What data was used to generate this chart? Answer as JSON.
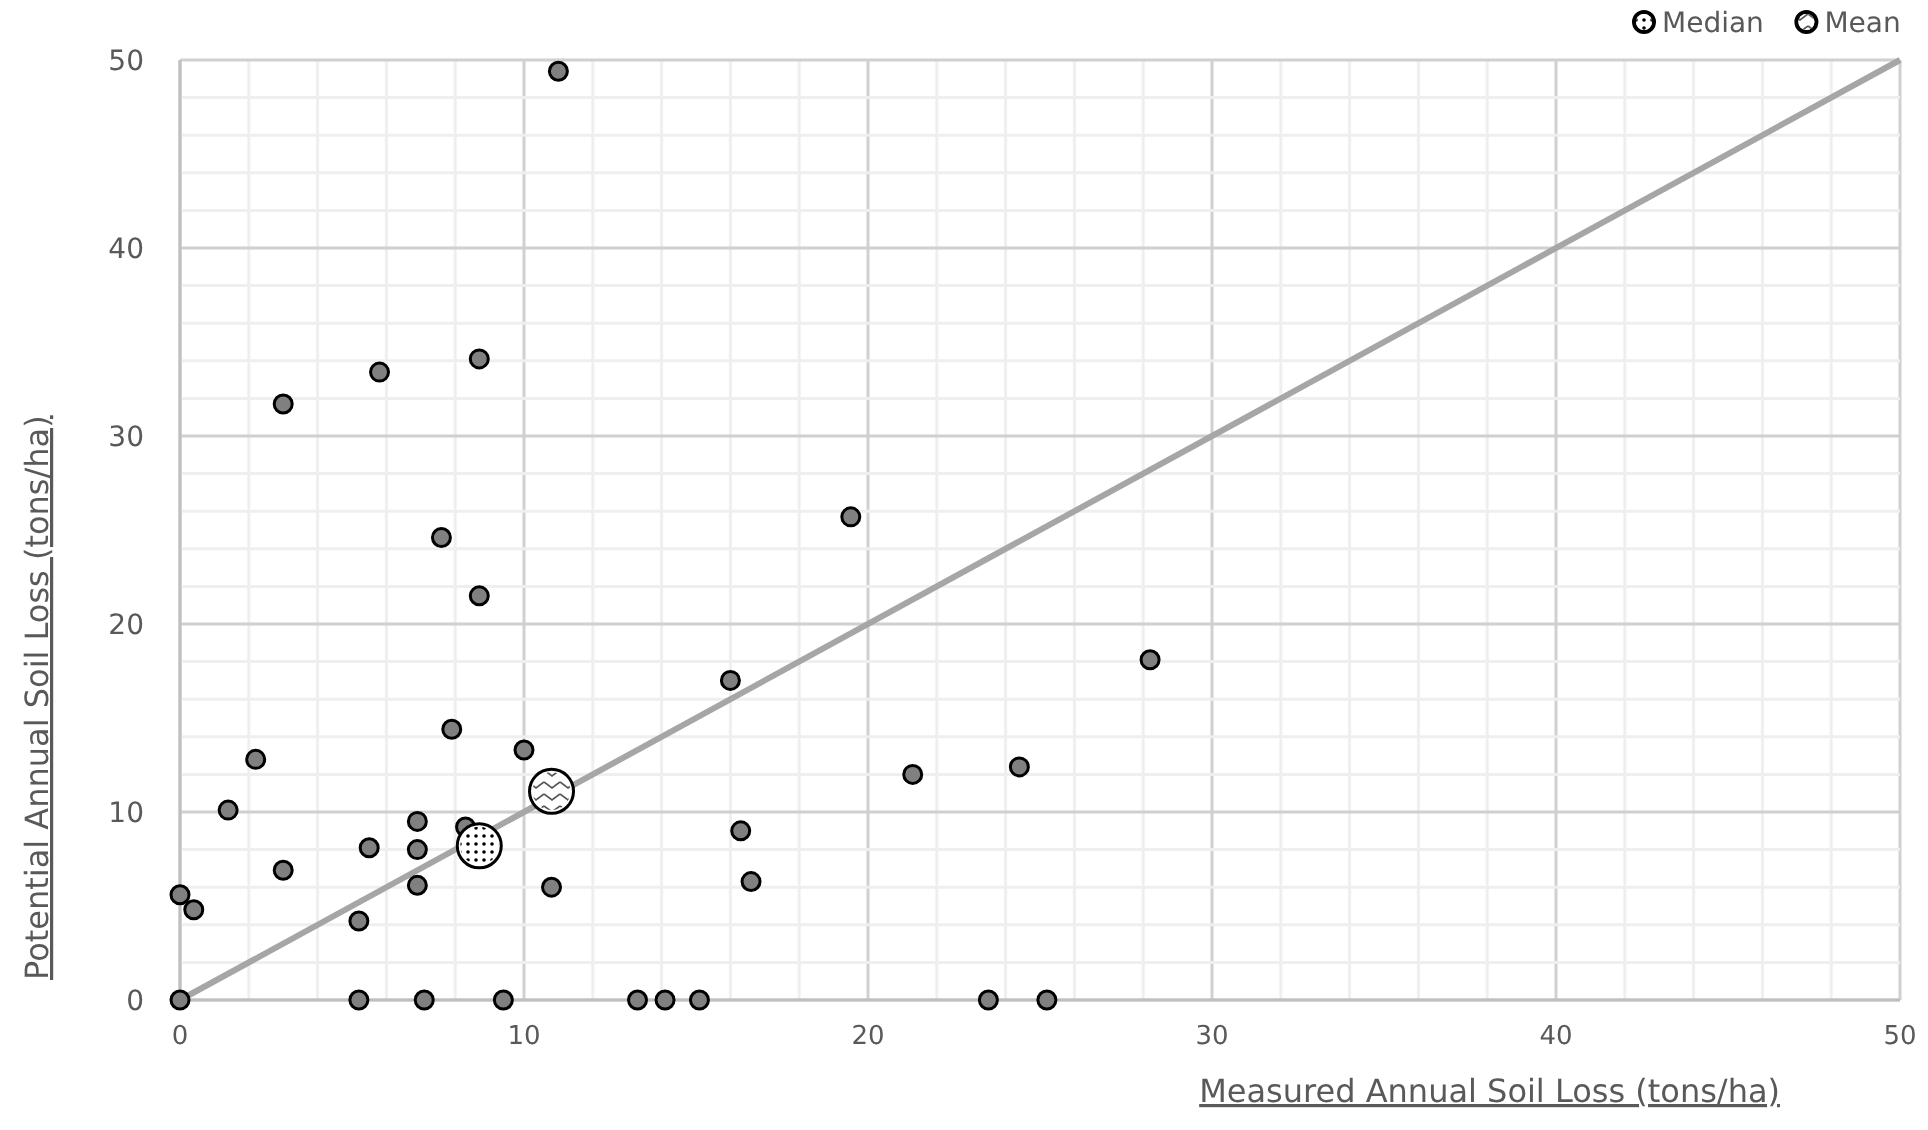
{
  "chart_data": {
    "type": "scatter",
    "xlabel": "Measured Annual Soil Loss (tons/ha)",
    "ylabel": "Potential Annual Soil Loss (tons/ha)",
    "xlim": [
      0,
      50
    ],
    "ylim": [
      0,
      50
    ],
    "xticks": [
      0,
      {
        "value": 2,
        "label": null
      },
      {
        "value": 4,
        "label": null
      },
      {
        "value": 6,
        "label": null
      },
      {
        "value": 8,
        "label": null
      },
      10,
      {
        "value": 12,
        "label": null
      },
      {
        "value": 14,
        "label": null
      },
      {
        "value": 16,
        "label": null
      },
      {
        "value": 18,
        "label": null
      },
      20,
      {
        "value": 22,
        "label": null
      },
      {
        "value": 24,
        "label": null
      },
      {
        "value": 26,
        "label": null
      },
      {
        "value": 28,
        "label": null
      },
      30,
      {
        "value": 32,
        "label": null
      },
      {
        "value": 34,
        "label": null
      },
      {
        "value": 36,
        "label": null
      },
      {
        "value": 38,
        "label": null
      },
      40,
      {
        "value": 42,
        "label": null
      },
      {
        "value": 44,
        "label": null
      },
      {
        "value": 46,
        "label": null
      },
      {
        "value": 48,
        "label": null
      },
      50
    ],
    "yticks": [
      0,
      {
        "value": 2,
        "label": null
      },
      {
        "value": 4,
        "label": null
      },
      {
        "value": 6,
        "label": null
      },
      {
        "value": 8,
        "label": null
      },
      10,
      {
        "value": 12,
        "label": null
      },
      {
        "value": 14,
        "label": null
      },
      {
        "value": 16,
        "label": null
      },
      {
        "value": 18,
        "label": null
      },
      20,
      {
        "value": 22,
        "label": null
      },
      {
        "value": 24,
        "label": null
      },
      {
        "value": 26,
        "label": null
      },
      {
        "value": 28,
        "label": null
      },
      30,
      {
        "value": 32,
        "label": null
      },
      {
        "value": 34,
        "label": null
      },
      {
        "value": 36,
        "label": null
      },
      {
        "value": 38,
        "label": null
      },
      40,
      {
        "value": 42,
        "label": null
      },
      {
        "value": 44,
        "label": null
      },
      {
        "value": 46,
        "label": null
      },
      {
        "value": 48,
        "label": null
      },
      50
    ],
    "grid": true,
    "legend": "top right",
    "marker": "circle",
    "series": [
      {
        "type": "line",
        "marker": "none",
        "color": "#a6a6a6",
        "x": [
          0,
          50
        ],
        "values": [
          0,
          50
        ]
      },
      {
        "color": "#808080",
        "x": [
          0,
          0,
          0.4,
          1.4,
          2.2,
          3,
          3,
          5.2,
          5.2,
          5.5,
          5.8,
          6.9,
          6.9,
          6.9,
          7.1,
          7.6,
          7.9,
          8.3,
          8.7,
          8.7,
          9.4,
          10,
          10.8,
          11,
          13.3,
          14.1,
          15.1,
          16,
          16.3,
          16.6,
          19.5,
          21.3,
          23.5,
          24.4,
          25.2,
          28.2
        ],
        "values": [
          0,
          5.6,
          4.8,
          10.1,
          12.8,
          6.9,
          31.7,
          4.2,
          0,
          8.1,
          33.4,
          6.1,
          8,
          9.5,
          0,
          24.6,
          14.4,
          9.2,
          34.1,
          21.5,
          0,
          13.3,
          6,
          49.4,
          0,
          0,
          0,
          17,
          9,
          6.3,
          25.7,
          12,
          0,
          12.4,
          0,
          18.1
        ]
      },
      {
        "name": "Median",
        "color": "#ffffff",
        "x": [
          8.7
        ],
        "values": [
          8.2
        ]
      },
      {
        "name": "Mean",
        "color": "#ffffff",
        "x": [
          10.8
        ],
        "values": [
          11.1
        ]
      }
    ]
  }
}
